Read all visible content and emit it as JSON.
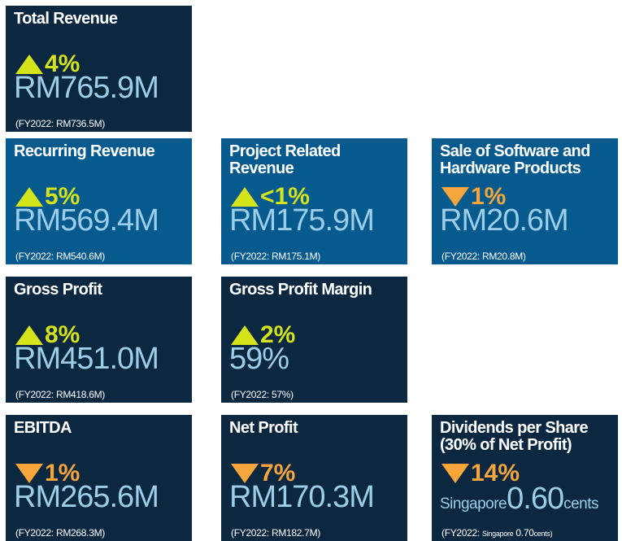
{
  "cards": [
    {
      "title_lines": [
        "Total Revenue"
      ],
      "direction": "up",
      "change": "4%",
      "value": "RM765.9M",
      "previous": "(FY2022: RM736.5M)",
      "style": "dark"
    },
    {
      "title_lines": [
        "Recurring Revenue"
      ],
      "direction": "up",
      "change": "5%",
      "value": "RM569.4M",
      "previous": "(FY2022: RM540.6M)",
      "style": "blue"
    },
    {
      "title_lines": [
        "Project Related Revenue"
      ],
      "direction": "up",
      "change": "<1%",
      "value": "RM175.9M",
      "previous": "(FY2022: RM175.1M)",
      "style": "blue"
    },
    {
      "title_lines": [
        "Sale of Software and",
        "Hardware Products"
      ],
      "direction": "down",
      "change": "1%",
      "value": "RM20.6M",
      "previous": "(FY2022: RM20.8M)",
      "style": "blue"
    },
    {
      "title_lines": [
        "Gross Profit"
      ],
      "direction": "up",
      "change": "8%",
      "value": "RM451.0M",
      "previous": "(FY2022: RM418.6M)",
      "style": "dark"
    },
    {
      "title_lines": [
        "Gross Profit Margin"
      ],
      "direction": "up",
      "change": "2%",
      "value": "59%",
      "previous": "(FY2022: 57%)",
      "style": "dark"
    },
    {
      "title_lines": [
        "EBITDA"
      ],
      "direction": "down",
      "change": "1%",
      "value": "RM265.6M",
      "previous": "(FY2022: RM268.3M)",
      "style": "dark"
    },
    {
      "title_lines": [
        "Net Profit"
      ],
      "direction": "down",
      "change": "7%",
      "value": "RM170.3M",
      "previous": "(FY2022: RM182.7M)",
      "style": "dark"
    },
    {
      "title_lines": [
        "Dividends per Share",
        "(30% of Net Profit)"
      ],
      "direction": "down",
      "change": "14%",
      "value_prefix": "Singapore",
      "value": "0.60",
      "value_suffix": "cents",
      "previous_prefix": "(FY2022:",
      "previous_unit": "Singapore",
      "previous": "0.70",
      "previous_suffix": "cents)",
      "style": "dark"
    }
  ]
}
